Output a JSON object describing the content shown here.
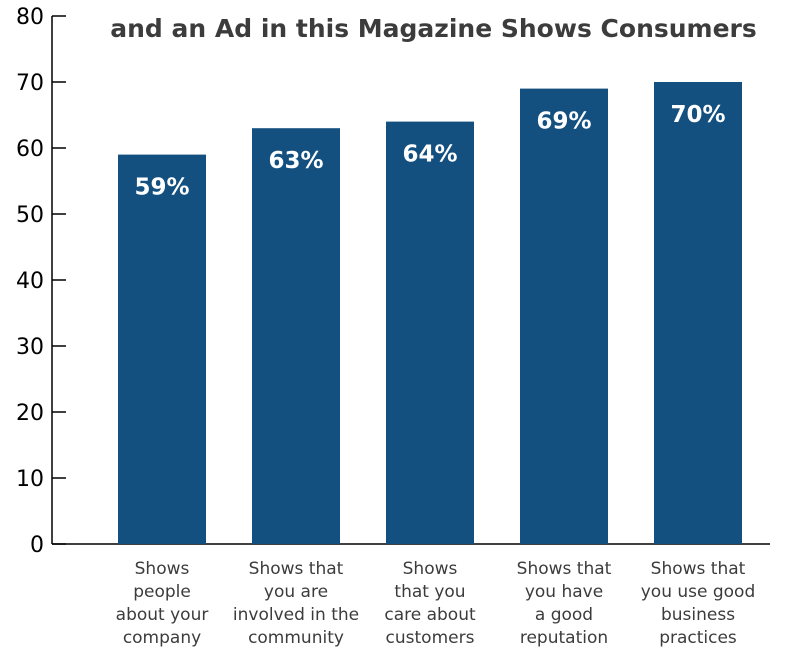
{
  "chart_data": {
    "type": "bar",
    "title_lines": [
      "",
      "and an Ad in this Magazine Shows Consumers"
    ],
    "categories": [
      [
        "Shows",
        "people",
        "about your",
        "company"
      ],
      [
        "Shows that",
        "you are",
        "involved in the",
        "community"
      ],
      [
        "Shows",
        "that you",
        "care about",
        "customers"
      ],
      [
        "Shows that",
        "you have",
        "a good",
        "reputation"
      ],
      [
        "Shows that",
        "you use good",
        "business",
        "practices"
      ]
    ],
    "values": [
      59,
      63,
      64,
      69,
      70
    ],
    "data_labels": [
      "59%",
      "63%",
      "64%",
      "69%",
      "70%"
    ],
    "y_ticks": [
      "0",
      "10",
      "20",
      "30",
      "40",
      "50",
      "60",
      "70",
      "80"
    ],
    "ylim": [
      0,
      80
    ],
    "grid": false,
    "legend": "none",
    "bar_color": "#14507f",
    "label_color": "#ffffff",
    "axis_color": "#000000",
    "text_color": "#3c3c3c"
  }
}
